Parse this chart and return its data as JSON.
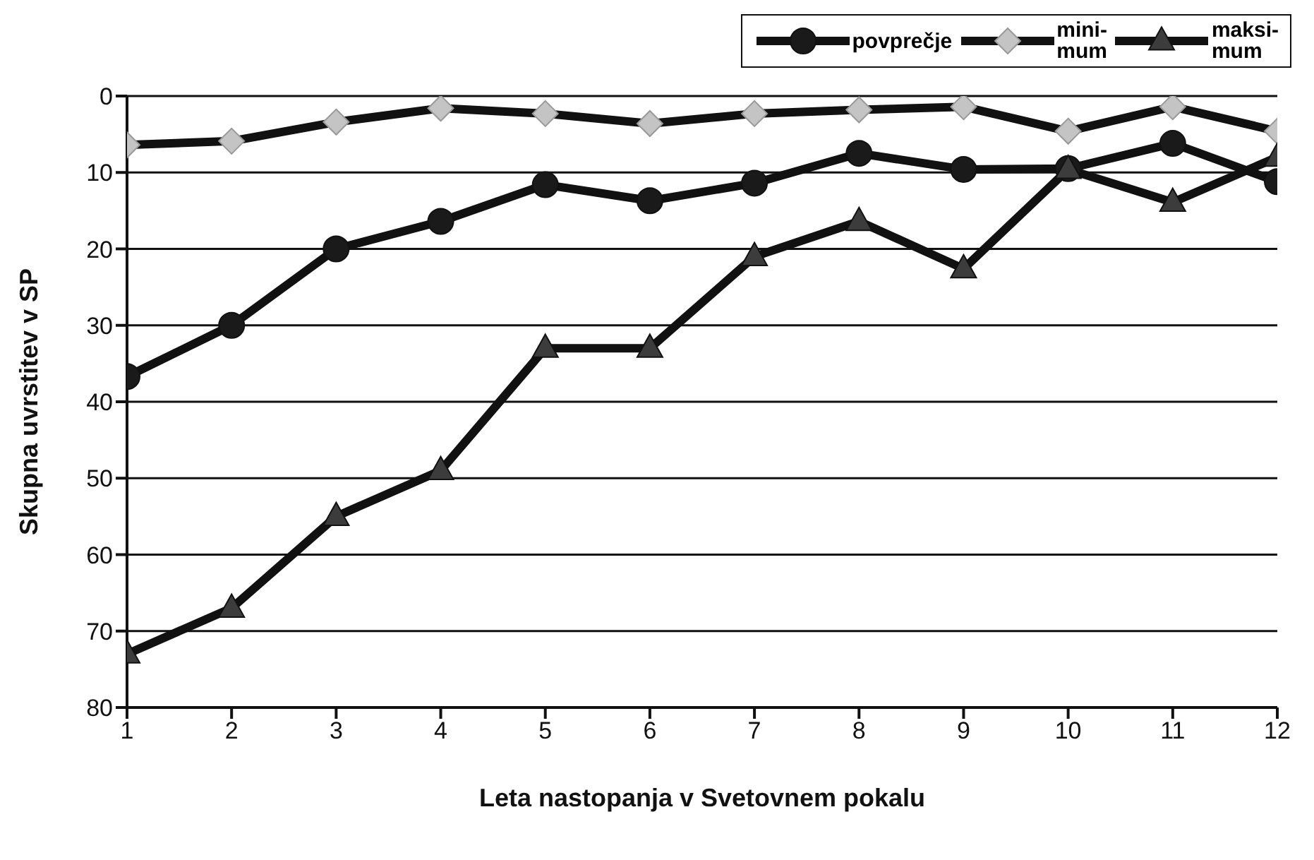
{
  "chart_data": {
    "type": "line",
    "xlabel": "Leta nastopanja v Svetovnem pokalu",
    "ylabel": "Skupna uvrstitev v SP",
    "x": [
      1,
      2,
      3,
      4,
      5,
      6,
      7,
      8,
      9,
      10,
      11,
      12
    ],
    "series": [
      {
        "name": "povprečje",
        "color": "#1a1a1a",
        "marker": "circle",
        "values": [
          36.7,
          30,
          20,
          16.4,
          11.6,
          13.7,
          11.4,
          7.5,
          9.6,
          9.5,
          6.2,
          11.2
        ]
      },
      {
        "name": "mini-\nmum",
        "color": "#c4c4c4",
        "marker": "diamond",
        "values": [
          6.4,
          5.9,
          3.4,
          1.6,
          2.3,
          3.6,
          2.3,
          1.8,
          1.4,
          4.6,
          1.4,
          4.6
        ]
      },
      {
        "name": "maksi-\nmum",
        "color": "#3c3c3c",
        "marker": "triangle",
        "values": [
          73,
          67,
          55,
          49,
          33,
          33,
          21,
          16.4,
          22.6,
          9.6,
          13.9,
          8
        ]
      }
    ],
    "xlim": [
      1,
      12
    ],
    "xticks": [
      1,
      2,
      3,
      4,
      5,
      6,
      7,
      8,
      9,
      10,
      11,
      12
    ],
    "ylim": [
      80,
      0
    ],
    "yticks": [
      0,
      10,
      20,
      30,
      40,
      50,
      60,
      70,
      80
    ],
    "grid": "y",
    "legend": "top right",
    "line_style": "solid"
  }
}
